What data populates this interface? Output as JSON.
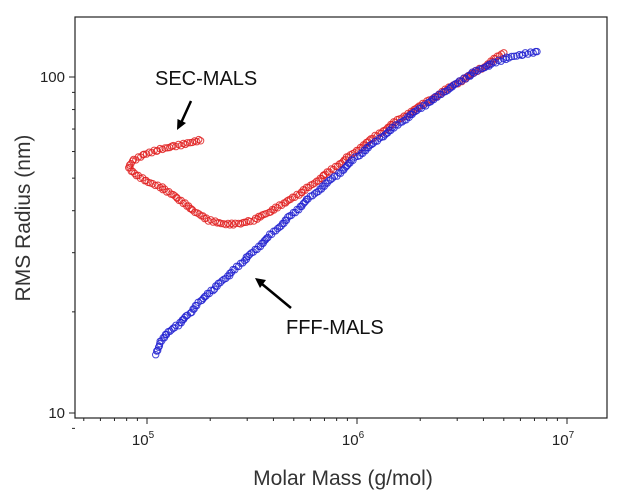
{
  "chart_data": {
    "type": "scatter",
    "title": "",
    "xlabel": "Molar Mass (g/mol)",
    "ylabel": "RMS Radius (nm)",
    "xscale": "log",
    "yscale": "log",
    "xlim": [
      50000,
      15000000
    ],
    "ylim": [
      9,
      150
    ],
    "grid": false,
    "legend": "none",
    "x_ticks": [
      {
        "value": 100000,
        "base": "10",
        "exp": "5"
      },
      {
        "value": 1000000,
        "base": "10",
        "exp": "6"
      },
      {
        "value": 10000000,
        "base": "10",
        "exp": "7"
      }
    ],
    "y_ticks": [
      {
        "value": 10,
        "label": "10"
      },
      {
        "value": 100,
        "label": "100"
      }
    ],
    "annotations": [
      {
        "text": "SEC-MALS"
      },
      {
        "text": "FFF-MALS"
      }
    ],
    "series": [
      {
        "color": "#e02020",
        "x": [
          180000,
          155000,
          130000,
          110000,
          95000,
          85000,
          82000,
          88000,
          100000,
          120000,
          140000,
          165000,
          195000,
          230000,
          270000,
          320000,
          380000,
          450000,
          550000,
          700000,
          900000,
          1200000,
          1600000,
          2200000,
          3000000,
          4000000,
          5000000
        ],
        "y": [
          65,
          63.5,
          62,
          60.5,
          58.5,
          56,
          54,
          51.5,
          49,
          46.5,
          43.5,
          40,
          37.5,
          36.5,
          36.5,
          37.5,
          39.5,
          42,
          45.5,
          51,
          57.5,
          66,
          75,
          85,
          96,
          107,
          118
        ]
      },
      {
        "color": "#2020d0",
        "x": [
          110000,
          115000,
          125000,
          140000,
          160000,
          180000,
          210000,
          250000,
          300000,
          380000,
          480000,
          600000,
          800000,
          1000000,
          1300000,
          1700000,
          2200000,
          2800000,
          3500000,
          4300000,
          5200000,
          6200000,
          7200000
        ],
        "y": [
          15,
          16.3,
          17.4,
          18.3,
          19.8,
          21.5,
          23.5,
          26,
          29,
          33.5,
          38.5,
          44,
          51,
          58,
          66,
          75,
          84,
          93,
          102,
          109,
          114,
          117,
          119
        ]
      }
    ]
  }
}
